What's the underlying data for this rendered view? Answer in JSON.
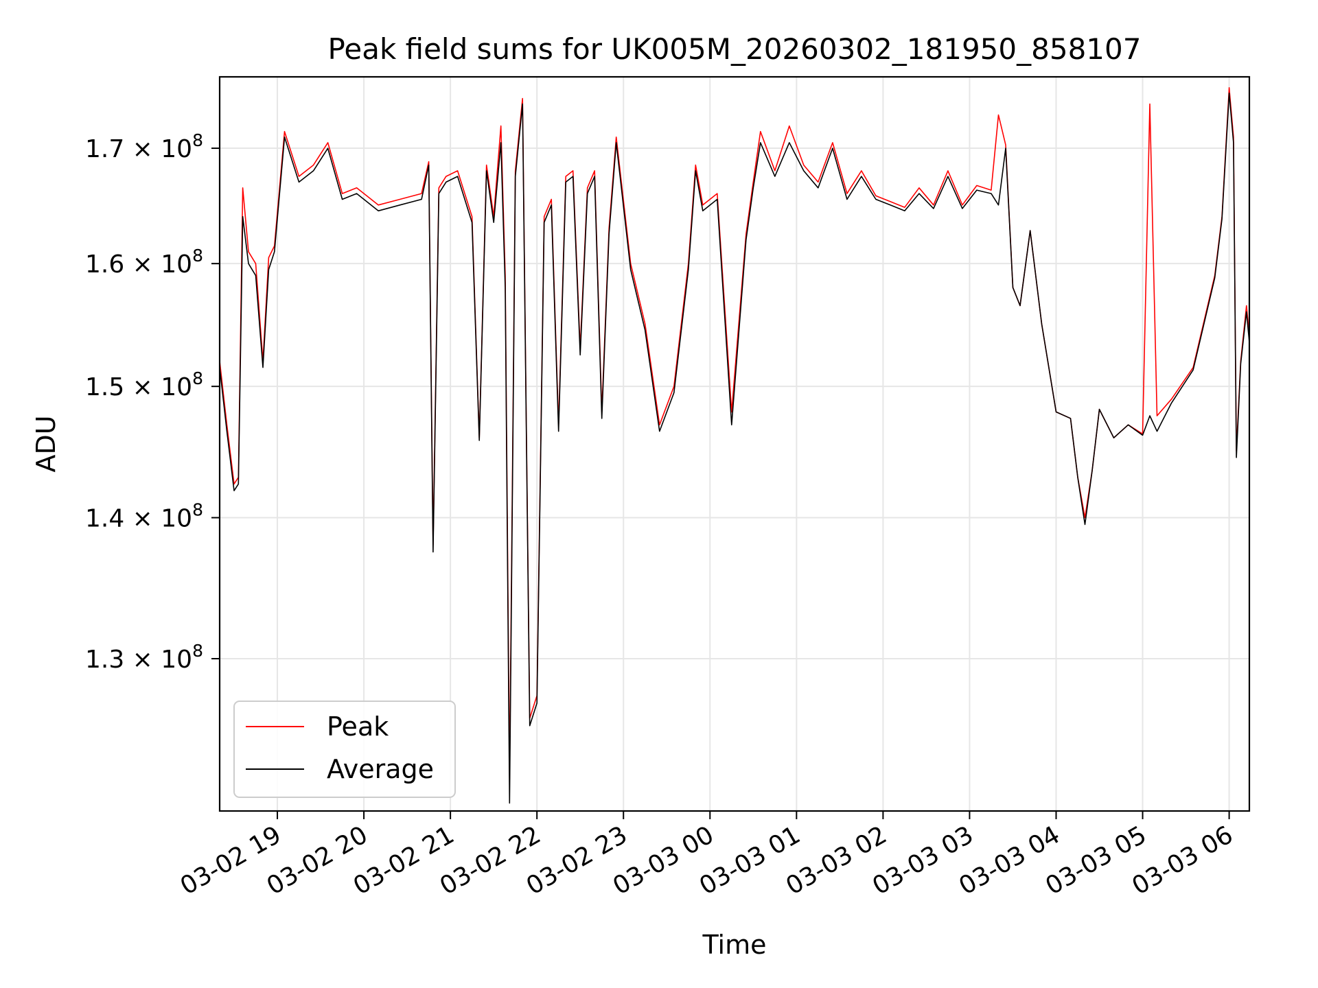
{
  "chart_data": {
    "type": "line",
    "title": "Peak field sums for UK005M_20260302_181950_858107",
    "xlabel": "Time",
    "ylabel": "ADU",
    "y_scale": "log",
    "x_range": [
      "2026-03-02 18:20",
      "2026-03-03 06:14"
    ],
    "ylim": [
      120000000,
      176500000
    ],
    "grid": true,
    "legend_position": "lower-left",
    "x_ticks": [
      {
        "value": "2026-03-02 19:00",
        "label": "03-02 19"
      },
      {
        "value": "2026-03-02 20:00",
        "label": "03-02 20"
      },
      {
        "value": "2026-03-02 21:00",
        "label": "03-02 21"
      },
      {
        "value": "2026-03-02 22:00",
        "label": "03-02 22"
      },
      {
        "value": "2026-03-02 23:00",
        "label": "03-02 23"
      },
      {
        "value": "2026-03-03 00:00",
        "label": "03-03 00"
      },
      {
        "value": "2026-03-03 01:00",
        "label": "03-03 01"
      },
      {
        "value": "2026-03-03 02:00",
        "label": "03-03 02"
      },
      {
        "value": "2026-03-03 03:00",
        "label": "03-03 03"
      },
      {
        "value": "2026-03-03 04:00",
        "label": "03-03 04"
      },
      {
        "value": "2026-03-03 05:00",
        "label": "03-03 05"
      },
      {
        "value": "2026-03-03 06:00",
        "label": "03-03 06"
      }
    ],
    "y_ticks": [
      {
        "value": 130000000,
        "mantissa": "1.3",
        "exponent": "8"
      },
      {
        "value": 140000000,
        "mantissa": "1.4",
        "exponent": "8"
      },
      {
        "value": 150000000,
        "mantissa": "1.5",
        "exponent": "8"
      },
      {
        "value": 160000000,
        "mantissa": "1.6",
        "exponent": "8"
      },
      {
        "value": 170000000,
        "mantissa": "1.7",
        "exponent": "8"
      }
    ],
    "series": [
      {
        "name": "Peak",
        "color": "#ff0000",
        "x": [
          "2026-03-02 18:20",
          "2026-03-02 18:25",
          "2026-03-02 18:30",
          "2026-03-02 18:33",
          "2026-03-02 18:36",
          "2026-03-02 18:40",
          "2026-03-02 18:45",
          "2026-03-02 18:50",
          "2026-03-02 18:54",
          "2026-03-02 18:58",
          "2026-03-02 19:05",
          "2026-03-02 19:15",
          "2026-03-02 19:25",
          "2026-03-02 19:35",
          "2026-03-02 19:45",
          "2026-03-02 19:55",
          "2026-03-02 20:10",
          "2026-03-02 20:25",
          "2026-03-02 20:40",
          "2026-03-02 20:45",
          "2026-03-02 20:48",
          "2026-03-02 20:52",
          "2026-03-02 20:57",
          "2026-03-02 21:05",
          "2026-03-02 21:15",
          "2026-03-02 21:20",
          "2026-03-02 21:25",
          "2026-03-02 21:30",
          "2026-03-02 21:35",
          "2026-03-02 21:38",
          "2026-03-02 21:41",
          "2026-03-02 21:45",
          "2026-03-02 21:50",
          "2026-03-02 21:55",
          "2026-03-02 22:00",
          "2026-03-02 22:05",
          "2026-03-02 22:10",
          "2026-03-02 22:15",
          "2026-03-02 22:20",
          "2026-03-02 22:25",
          "2026-03-02 22:30",
          "2026-03-02 22:35",
          "2026-03-02 22:40",
          "2026-03-02 22:45",
          "2026-03-02 22:50",
          "2026-03-02 22:55",
          "2026-03-02 23:05",
          "2026-03-02 23:15",
          "2026-03-02 23:25",
          "2026-03-02 23:35",
          "2026-03-02 23:45",
          "2026-03-02 23:50",
          "2026-03-02 23:55",
          "2026-03-03 00:05",
          "2026-03-03 00:15",
          "2026-03-03 00:25",
          "2026-03-03 00:30",
          "2026-03-03 00:35",
          "2026-03-03 00:45",
          "2026-03-03 00:55",
          "2026-03-03 01:05",
          "2026-03-03 01:15",
          "2026-03-03 01:25",
          "2026-03-03 01:35",
          "2026-03-03 01:45",
          "2026-03-03 01:55",
          "2026-03-03 02:05",
          "2026-03-03 02:15",
          "2026-03-03 02:25",
          "2026-03-03 02:35",
          "2026-03-03 02:45",
          "2026-03-03 02:55",
          "2026-03-03 03:05",
          "2026-03-03 03:15",
          "2026-03-03 03:20",
          "2026-03-03 03:25",
          "2026-03-03 03:30",
          "2026-03-03 03:35",
          "2026-03-03 03:42",
          "2026-03-03 03:50",
          "2026-03-03 04:00",
          "2026-03-03 04:10",
          "2026-03-03 04:15",
          "2026-03-03 04:20",
          "2026-03-03 04:25",
          "2026-03-03 04:30",
          "2026-03-03 04:40",
          "2026-03-03 04:50",
          "2026-03-03 05:00",
          "2026-03-03 05:05",
          "2026-03-03 05:10",
          "2026-03-03 05:20",
          "2026-03-03 05:35",
          "2026-03-03 05:50",
          "2026-03-03 05:55",
          "2026-03-03 06:00",
          "2026-03-03 06:03",
          "2026-03-03 06:05",
          "2026-03-03 06:08",
          "2026-03-03 06:12",
          "2026-03-03 06:14"
        ],
        "y": [
          152000000,
          147000000,
          142500000,
          143000000,
          166500000,
          161000000,
          160000000,
          152000000,
          160500000,
          161500000,
          171500000,
          167500000,
          168500000,
          170500000,
          166000000,
          166500000,
          165000000,
          165500000,
          166000000,
          168800000,
          138000000,
          166500000,
          167500000,
          168000000,
          164000000,
          146000000,
          168500000,
          164000000,
          172000000,
          159000000,
          122000000,
          168000000,
          174500000,
          126000000,
          127500000,
          164000000,
          165500000,
          147000000,
          167500000,
          168000000,
          153000000,
          166500000,
          168000000,
          148000000,
          163000000,
          171000000,
          160000000,
          155000000,
          147000000,
          150000000,
          160000000,
          168500000,
          165000000,
          166000000,
          148000000,
          162500000,
          167000000,
          171500000,
          168000000,
          172000000,
          168500000,
          167000000,
          170500000,
          166000000,
          168000000,
          165800000,
          165300000,
          164800000,
          166500000,
          165000000,
          168000000,
          165000000,
          166700000,
          166300000,
          173000000,
          170300000,
          158000000,
          156500000,
          162800000,
          155000000,
          148000000,
          147500000,
          143000000,
          140000000,
          143500000,
          148200000,
          146000000,
          147000000,
          146300000,
          174000000,
          147700000,
          149000000,
          151500000,
          159000000,
          164000000,
          175500000,
          171000000,
          145000000,
          152000000,
          156500000,
          154000000
        ]
      },
      {
        "name": "Average",
        "color": "#000000",
        "x": [
          "2026-03-02 18:20",
          "2026-03-02 18:25",
          "2026-03-02 18:30",
          "2026-03-02 18:33",
          "2026-03-02 18:36",
          "2026-03-02 18:40",
          "2026-03-02 18:45",
          "2026-03-02 18:50",
          "2026-03-02 18:54",
          "2026-03-02 18:58",
          "2026-03-02 19:05",
          "2026-03-02 19:15",
          "2026-03-02 19:25",
          "2026-03-02 19:35",
          "2026-03-02 19:45",
          "2026-03-02 19:55",
          "2026-03-02 20:10",
          "2026-03-02 20:25",
          "2026-03-02 20:40",
          "2026-03-02 20:45",
          "2026-03-02 20:48",
          "2026-03-02 20:52",
          "2026-03-02 20:57",
          "2026-03-02 21:05",
          "2026-03-02 21:15",
          "2026-03-02 21:20",
          "2026-03-02 21:25",
          "2026-03-02 21:30",
          "2026-03-02 21:35",
          "2026-03-02 21:38",
          "2026-03-02 21:41",
          "2026-03-02 21:45",
          "2026-03-02 21:50",
          "2026-03-02 21:55",
          "2026-03-02 22:00",
          "2026-03-02 22:05",
          "2026-03-02 22:10",
          "2026-03-02 22:15",
          "2026-03-02 22:20",
          "2026-03-02 22:25",
          "2026-03-02 22:30",
          "2026-03-02 22:35",
          "2026-03-02 22:40",
          "2026-03-02 22:45",
          "2026-03-02 22:50",
          "2026-03-02 22:55",
          "2026-03-02 23:05",
          "2026-03-02 23:15",
          "2026-03-02 23:25",
          "2026-03-02 23:35",
          "2026-03-02 23:45",
          "2026-03-02 23:50",
          "2026-03-02 23:55",
          "2026-03-03 00:05",
          "2026-03-03 00:15",
          "2026-03-03 00:25",
          "2026-03-03 00:30",
          "2026-03-03 00:35",
          "2026-03-03 00:45",
          "2026-03-03 00:55",
          "2026-03-03 01:05",
          "2026-03-03 01:15",
          "2026-03-03 01:25",
          "2026-03-03 01:35",
          "2026-03-03 01:45",
          "2026-03-03 01:55",
          "2026-03-03 02:05",
          "2026-03-03 02:15",
          "2026-03-03 02:25",
          "2026-03-03 02:35",
          "2026-03-03 02:45",
          "2026-03-03 02:55",
          "2026-03-03 03:05",
          "2026-03-03 03:15",
          "2026-03-03 03:20",
          "2026-03-03 03:25",
          "2026-03-03 03:30",
          "2026-03-03 03:35",
          "2026-03-03 03:42",
          "2026-03-03 03:50",
          "2026-03-03 04:00",
          "2026-03-03 04:10",
          "2026-03-03 04:15",
          "2026-03-03 04:20",
          "2026-03-03 04:25",
          "2026-03-03 04:30",
          "2026-03-03 04:40",
          "2026-03-03 04:50",
          "2026-03-03 05:00",
          "2026-03-03 05:05",
          "2026-03-03 05:10",
          "2026-03-03 05:20",
          "2026-03-03 05:35",
          "2026-03-03 05:50",
          "2026-03-03 05:55",
          "2026-03-03 06:00",
          "2026-03-03 06:03",
          "2026-03-03 06:05",
          "2026-03-03 06:08",
          "2026-03-03 06:12",
          "2026-03-03 06:14"
        ],
        "y": [
          151500000,
          146500000,
          142000000,
          142500000,
          164000000,
          160000000,
          159000000,
          151500000,
          159500000,
          161000000,
          171000000,
          167000000,
          168000000,
          170000000,
          165500000,
          166000000,
          164500000,
          165000000,
          165500000,
          168500000,
          137500000,
          166000000,
          167000000,
          167500000,
          163500000,
          145800000,
          168000000,
          163500000,
          170500000,
          158000000,
          120500000,
          167500000,
          174000000,
          125500000,
          127000000,
          163500000,
          165000000,
          146500000,
          167000000,
          167500000,
          152500000,
          166000000,
          167500000,
          147500000,
          162500000,
          170500000,
          159500000,
          154500000,
          146500000,
          149500000,
          159500000,
          168000000,
          164500000,
          165500000,
          147000000,
          162000000,
          166500000,
          170500000,
          167500000,
          170500000,
          168000000,
          166500000,
          170000000,
          165500000,
          167500000,
          165500000,
          165000000,
          164500000,
          166000000,
          164700000,
          167500000,
          164700000,
          166300000,
          166000000,
          165000000,
          170000000,
          158000000,
          156500000,
          162800000,
          155000000,
          148000000,
          147500000,
          143000000,
          139500000,
          143500000,
          148200000,
          146000000,
          147000000,
          146200000,
          147700000,
          146500000,
          148700000,
          151300000,
          158800000,
          163800000,
          175000000,
          170500000,
          144500000,
          151800000,
          156000000,
          153500000
        ]
      }
    ],
    "legend": [
      {
        "label": "Peak",
        "color": "#ff0000"
      },
      {
        "label": "Average",
        "color": "#000000"
      }
    ]
  }
}
